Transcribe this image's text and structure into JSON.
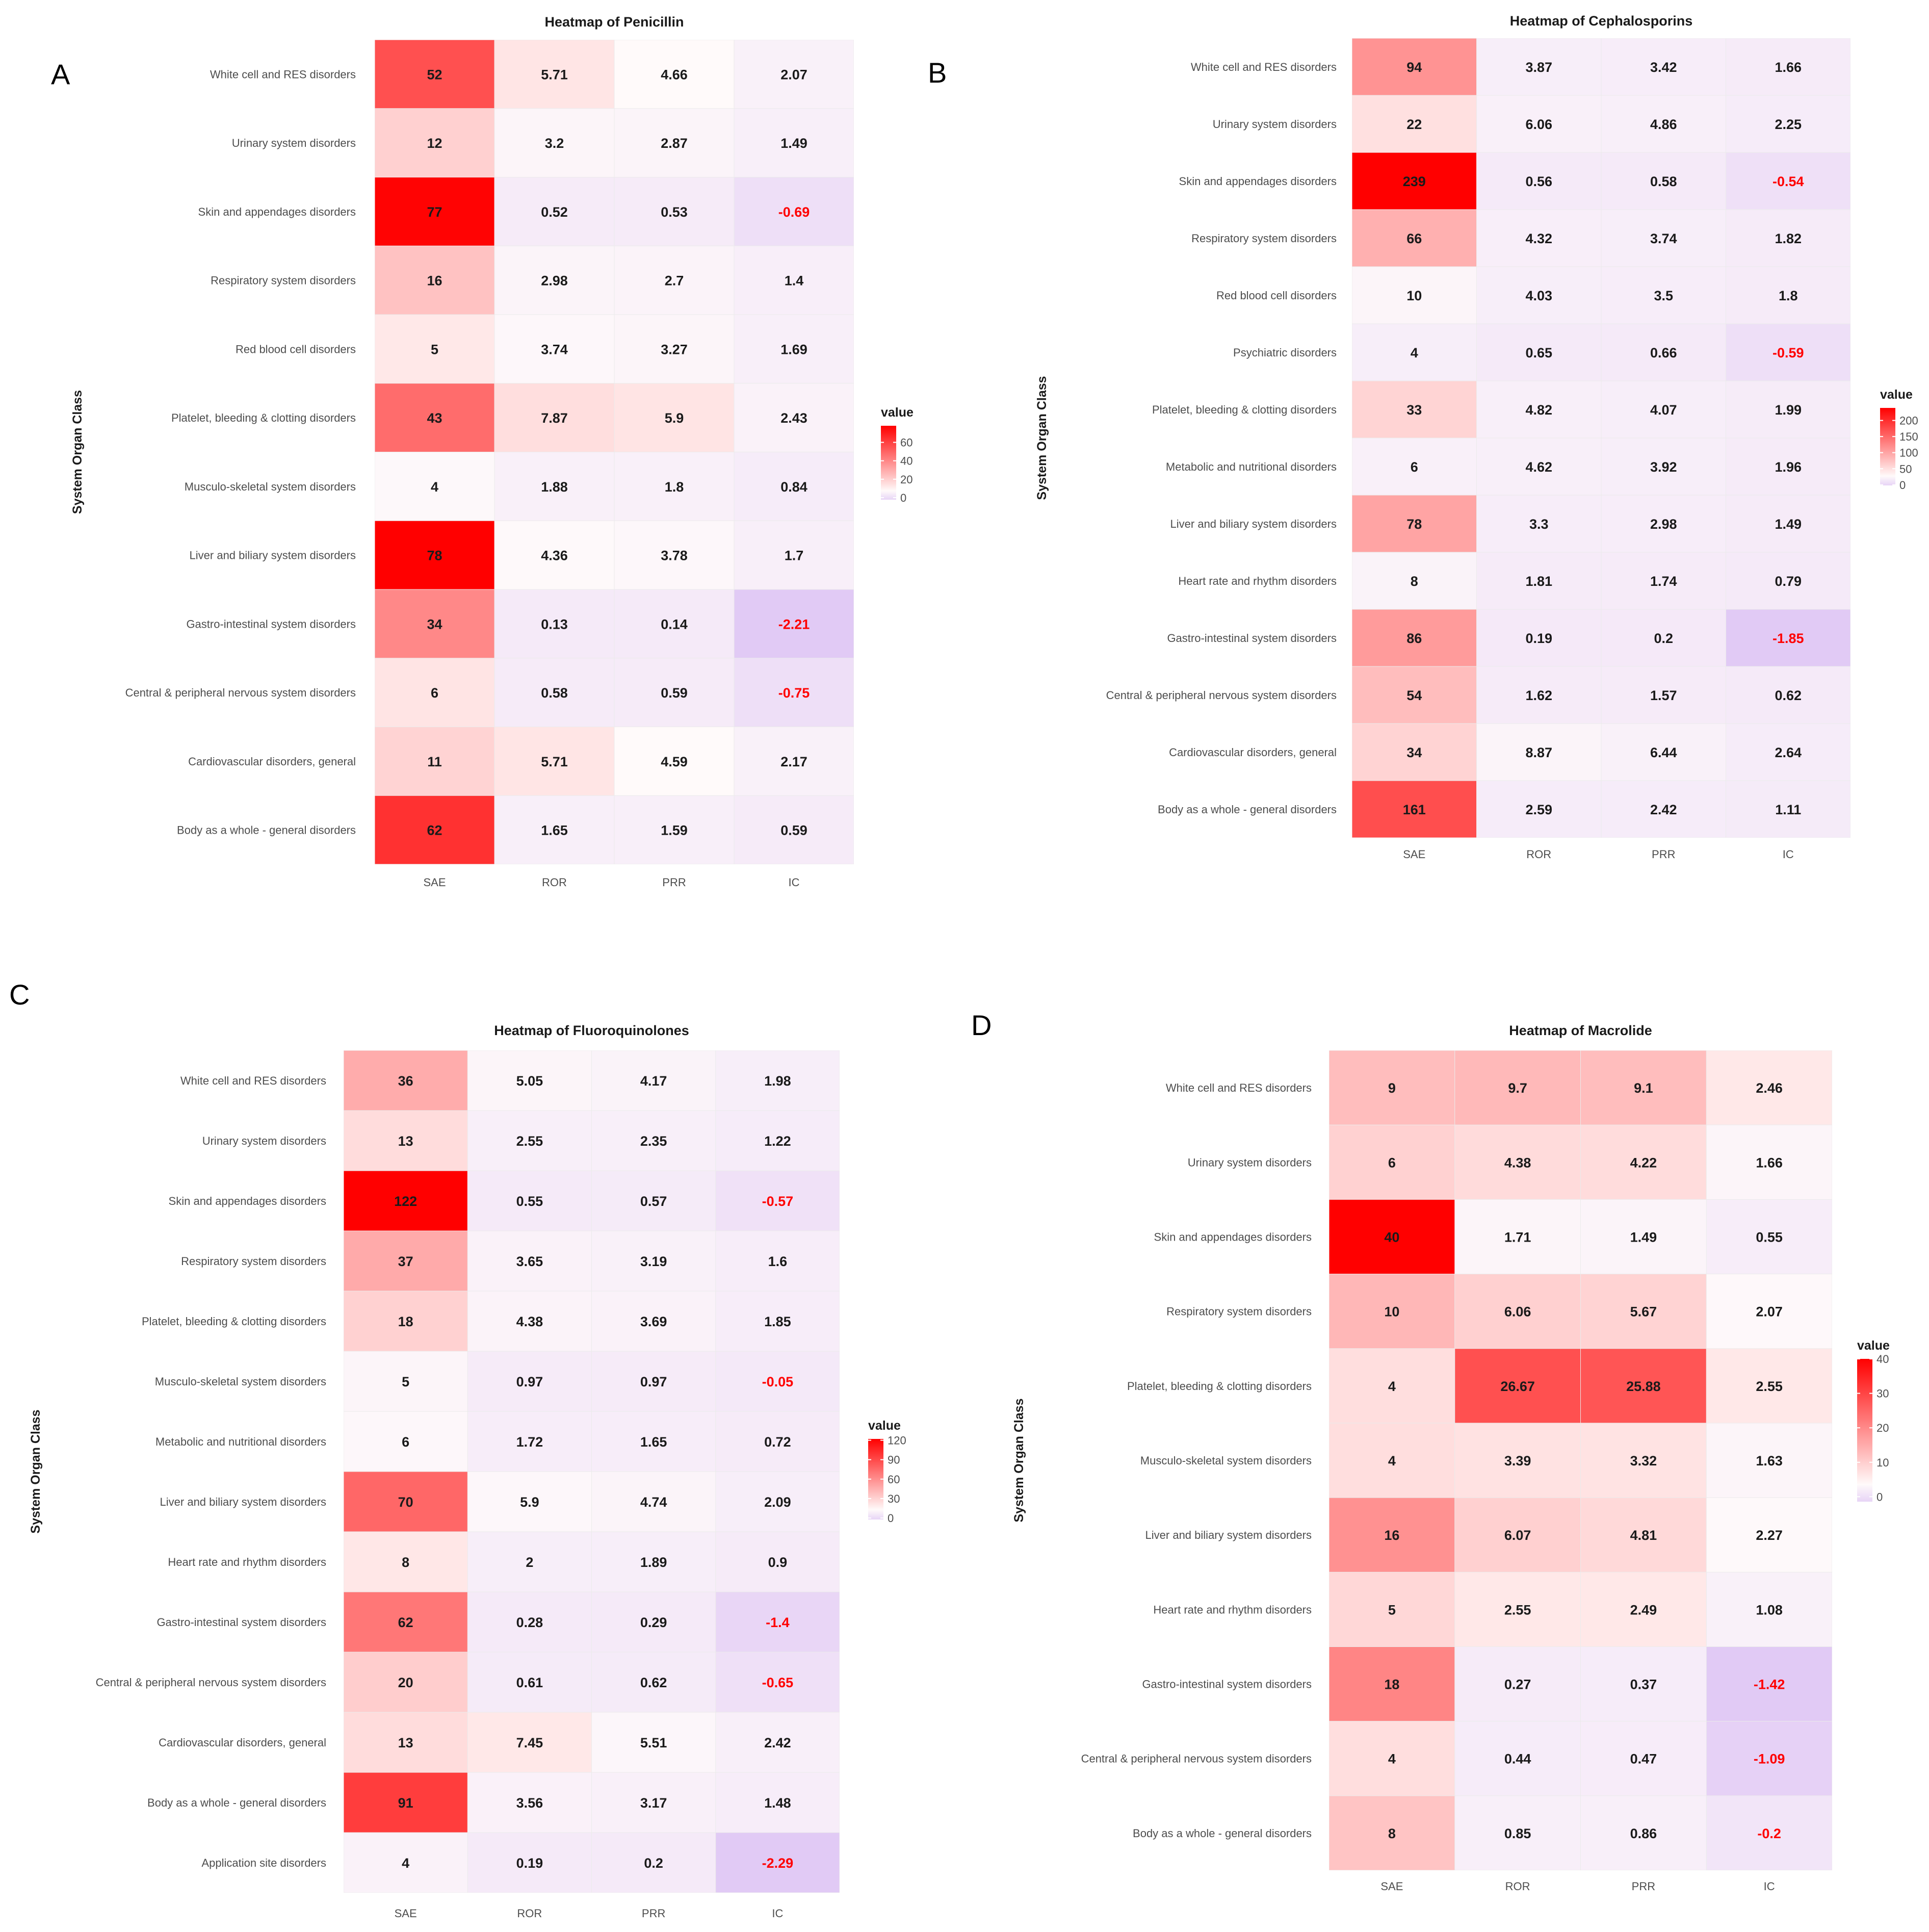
{
  "panels": [
    {
      "letter": "A",
      "chart_data": {
        "type": "heatmap",
        "title": "Heatmap of Penicillin",
        "ylabel": "System Organ Class",
        "xlabel": "",
        "columns": [
          "SAE",
          "ROR",
          "PRR",
          "IC"
        ],
        "rows": [
          "White cell and RES disorders",
          "Urinary system disorders",
          "Skin and appendages disorders",
          "Respiratory system disorders",
          "Red blood cell disorders",
          "Platelet, bleeding & clotting disorders",
          "Musculo-skeletal system disorders",
          "Liver and biliary system disorders",
          "Gastro-intestinal system disorders",
          "Central & peripheral nervous system disorders",
          "Cardiovascular disorders, general",
          "Body as a whole - general disorders"
        ],
        "values": [
          [
            52,
            5.71,
            4.66,
            2.07
          ],
          [
            12,
            3.2,
            2.87,
            1.49
          ],
          [
            77,
            0.52,
            0.53,
            -0.69
          ],
          [
            16,
            2.98,
            2.7,
            1.4
          ],
          [
            5,
            3.74,
            3.27,
            1.69
          ],
          [
            43,
            7.87,
            5.9,
            2.43
          ],
          [
            4,
            1.88,
            1.8,
            0.84
          ],
          [
            78,
            4.36,
            3.78,
            1.7
          ],
          [
            34,
            0.13,
            0.14,
            -2.21
          ],
          [
            6,
            0.58,
            0.59,
            -0.75
          ],
          [
            11,
            5.71,
            4.59,
            2.17
          ],
          [
            62,
            1.65,
            1.59,
            0.59
          ]
        ],
        "legend": {
          "title": "value",
          "ticks": [
            60,
            40,
            20,
            0
          ],
          "max": 78,
          "min": -2.21
        },
        "negative_label_color": "#ff0000"
      }
    },
    {
      "letter": "B",
      "chart_data": {
        "type": "heatmap",
        "title": "Heatmap of Cephalosporins",
        "ylabel": "System Organ Class",
        "xlabel": "",
        "columns": [
          "SAE",
          "ROR",
          "PRR",
          "IC"
        ],
        "rows": [
          "White cell and RES disorders",
          "Urinary system disorders",
          "Skin and appendages disorders",
          "Respiratory system disorders",
          "Red blood cell disorders",
          "Psychiatric disorders",
          "Platelet, bleeding & clotting disorders",
          "Metabolic and nutritional disorders",
          "Liver and biliary system disorders",
          "Heart rate and rhythm disorders",
          "Gastro-intestinal system disorders",
          "Central & peripheral nervous system disorders",
          "Cardiovascular disorders, general",
          "Body as a whole - general disorders"
        ],
        "values": [
          [
            94,
            3.87,
            3.42,
            1.66
          ],
          [
            22,
            6.06,
            4.86,
            2.25
          ],
          [
            239,
            0.56,
            0.58,
            -0.54
          ],
          [
            66,
            4.32,
            3.74,
            1.82
          ],
          [
            10,
            4.03,
            3.5,
            1.8
          ],
          [
            4,
            0.65,
            0.66,
            -0.59
          ],
          [
            33,
            4.82,
            4.07,
            1.99
          ],
          [
            6,
            4.62,
            3.92,
            1.96
          ],
          [
            78,
            3.3,
            2.98,
            1.49
          ],
          [
            8,
            1.81,
            1.74,
            0.79
          ],
          [
            86,
            0.19,
            0.2,
            -1.85
          ],
          [
            54,
            1.62,
            1.57,
            0.62
          ],
          [
            34,
            8.87,
            6.44,
            2.64
          ],
          [
            161,
            2.59,
            2.42,
            1.11
          ]
        ],
        "legend": {
          "title": "value",
          "ticks": [
            200,
            150,
            100,
            50,
            0
          ],
          "max": 239,
          "min": -1.85
        },
        "negative_label_color": "#ff0000"
      }
    },
    {
      "letter": "C",
      "chart_data": {
        "type": "heatmap",
        "title": "Heatmap of Fluoroquinolones",
        "ylabel": "System Organ Class",
        "xlabel": "",
        "columns": [
          "SAE",
          "ROR",
          "PRR",
          "IC"
        ],
        "rows": [
          "White cell and RES disorders",
          "Urinary system disorders",
          "Skin and appendages disorders",
          "Respiratory system disorders",
          "Platelet, bleeding & clotting disorders",
          "Musculo-skeletal system disorders",
          "Metabolic and nutritional disorders",
          "Liver and biliary system disorders",
          "Heart rate and rhythm disorders",
          "Gastro-intestinal system disorders",
          "Central & peripheral nervous system disorders",
          "Cardiovascular disorders, general",
          "Body as a whole - general disorders",
          "Application site disorders"
        ],
        "values": [
          [
            36,
            5.05,
            4.17,
            1.98
          ],
          [
            13,
            2.55,
            2.35,
            1.22
          ],
          [
            122,
            0.55,
            0.57,
            -0.57
          ],
          [
            37,
            3.65,
            3.19,
            1.6
          ],
          [
            18,
            4.38,
            3.69,
            1.85
          ],
          [
            5,
            0.97,
            0.97,
            -0.05
          ],
          [
            6,
            1.72,
            1.65,
            0.72
          ],
          [
            70,
            5.9,
            4.74,
            2.09
          ],
          [
            8,
            2,
            1.89,
            0.9
          ],
          [
            62,
            0.28,
            0.29,
            -1.4
          ],
          [
            20,
            0.61,
            0.62,
            -0.65
          ],
          [
            13,
            7.45,
            5.51,
            2.42
          ],
          [
            91,
            3.56,
            3.17,
            1.48
          ],
          [
            4,
            0.19,
            0.2,
            -2.29
          ]
        ],
        "legend": {
          "title": "value",
          "ticks": [
            120,
            90,
            60,
            30,
            0
          ],
          "max": 122,
          "min": -2.29
        },
        "negative_label_color": "#ff0000"
      }
    },
    {
      "letter": "D",
      "chart_data": {
        "type": "heatmap",
        "title": "Heatmap of Macrolide",
        "ylabel": "System Organ Class",
        "xlabel": "",
        "columns": [
          "SAE",
          "ROR",
          "PRR",
          "IC"
        ],
        "rows": [
          "White cell and RES disorders",
          "Urinary system disorders",
          "Skin and appendages disorders",
          "Respiratory system disorders",
          "Platelet, bleeding & clotting disorders",
          "Musculo-skeletal system disorders",
          "Liver and biliary system disorders",
          "Heart rate and rhythm disorders",
          "Gastro-intestinal system disorders",
          "Central & peripheral nervous system disorders",
          "Body as a whole - general disorders"
        ],
        "values": [
          [
            9,
            9.7,
            9.1,
            2.46
          ],
          [
            6,
            4.38,
            4.22,
            1.66
          ],
          [
            40,
            1.71,
            1.49,
            0.55
          ],
          [
            10,
            6.06,
            5.67,
            2.07
          ],
          [
            4,
            26.67,
            25.88,
            2.55
          ],
          [
            4,
            3.39,
            3.32,
            1.63
          ],
          [
            16,
            6.07,
            4.81,
            2.27
          ],
          [
            5,
            2.55,
            2.49,
            1.08
          ],
          [
            18,
            0.27,
            0.37,
            -1.42
          ],
          [
            4,
            0.44,
            0.47,
            -1.09
          ],
          [
            8,
            0.85,
            0.86,
            -0.2
          ]
        ],
        "legend": {
          "title": "value",
          "ticks": [
            40,
            30,
            20,
            10,
            0
          ],
          "max": 40,
          "min": -1.42
        },
        "negative_label_color": "#ff0000"
      }
    }
  ],
  "colors": {
    "high": "#ff0000",
    "mid": "#fffafa",
    "low": "#e1caf5",
    "cell_text": "#1a1a1a",
    "negative_text": "#ff0000",
    "panel_bg": "#ebebeb"
  }
}
